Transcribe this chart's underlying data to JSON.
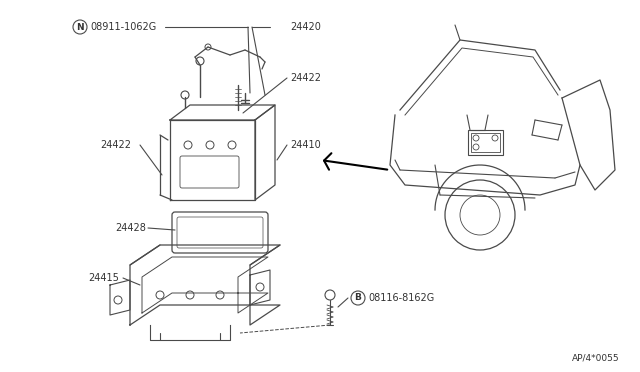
{
  "bg_color": "#ffffff",
  "line_color": "#4a4a4a",
  "text_color": "#333333",
  "diagram_id": "AP/4*0055",
  "label_n_circle": "N",
  "label_n_part": "08911-1062G",
  "label_b_circle": "B",
  "label_b_part": "08116-8162G",
  "label_24420": "24420",
  "label_24422a": "24422",
  "label_24422b": "24422",
  "label_24410": "24410",
  "label_24428": "24428",
  "label_24415": "24415"
}
